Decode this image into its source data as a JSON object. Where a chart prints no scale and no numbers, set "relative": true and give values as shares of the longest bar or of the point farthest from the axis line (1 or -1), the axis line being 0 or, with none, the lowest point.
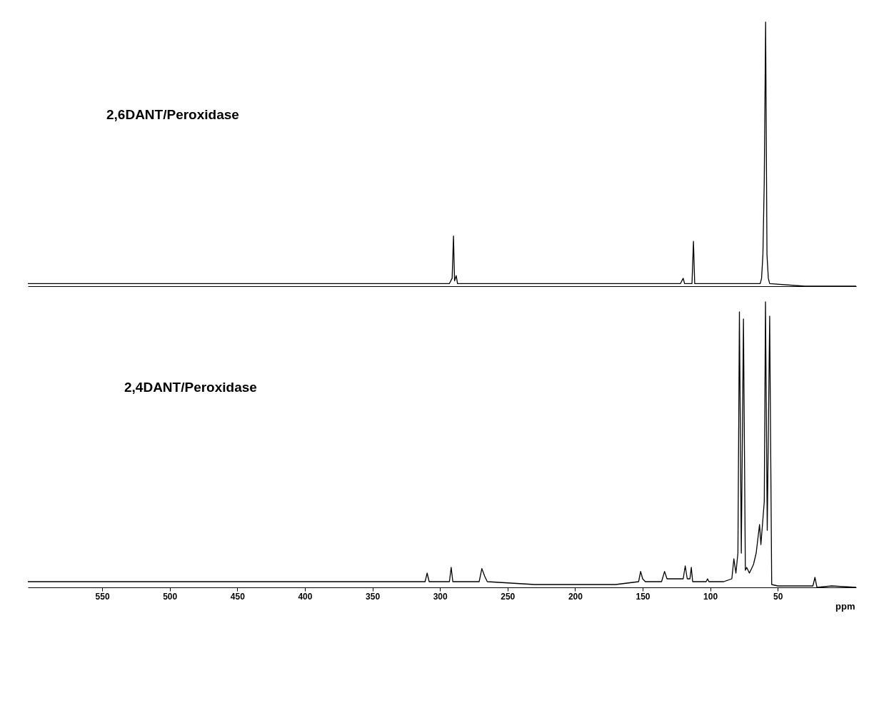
{
  "chart_data": [
    {
      "type": "line",
      "relative": true,
      "xlim": [
        605,
        -8
      ],
      "tick_labels": false,
      "grid": false,
      "marker": "none",
      "line_style": "solid",
      "annotations": [
        "2,6DANT/Peroxidase"
      ],
      "series": [
        {
          "color": "#000000",
          "x": [
            605,
            500,
            400,
            293,
            291,
            290,
            289.2,
            288,
            287,
            200,
            122,
            120,
            119,
            113.5,
            112.4,
            111.5,
            63,
            62,
            61,
            60,
            59,
            58,
            57,
            56,
            30,
            -8
          ],
          "values": [
            0.01,
            0.01,
            0.01,
            0.01,
            0.03,
            0.19,
            0.02,
            0.04,
            0.01,
            0.01,
            0.01,
            0.03,
            0.01,
            0.01,
            0.17,
            0.01,
            0.01,
            0.03,
            0.12,
            0.4,
            1.0,
            0.12,
            0.03,
            0.01,
            0.0,
            0.0
          ]
        }
      ]
    },
    {
      "type": "line",
      "relative": true,
      "xlim": [
        605,
        -8
      ],
      "xticks": [
        550,
        500,
        450,
        400,
        350,
        300,
        250,
        200,
        150,
        100,
        50
      ],
      "xlabel": "ppm",
      "grid": false,
      "marker": "none",
      "line_style": "solid",
      "annotations": [
        "2,4DANT/Peroxidase"
      ],
      "series": [
        {
          "color": "#000000",
          "x": [
            605,
            500,
            400,
            330,
            311,
            309.5,
            308,
            293,
            291.7,
            290.5,
            271,
            269,
            267,
            265,
            230,
            200,
            170,
            153,
            151.5,
            150,
            148,
            136,
            133.8,
            132,
            120,
            118.5,
            117,
            115,
            114,
            113,
            103,
            102,
            101,
            90,
            84,
            82.5,
            81,
            79.5,
            78.4,
            77,
            75.4,
            74,
            73,
            71,
            68,
            66,
            64.5,
            63.5,
            62.5,
            60,
            59.1,
            57.8,
            56,
            54.5,
            50,
            30,
            24,
            22.5,
            21,
            10,
            -8
          ],
          "values": [
            0.02,
            0.02,
            0.02,
            0.02,
            0.02,
            0.05,
            0.02,
            0.02,
            0.07,
            0.02,
            0.02,
            0.066,
            0.04,
            0.02,
            0.01,
            0.01,
            0.01,
            0.02,
            0.056,
            0.03,
            0.02,
            0.02,
            0.056,
            0.03,
            0.03,
            0.075,
            0.03,
            0.03,
            0.07,
            0.02,
            0.02,
            0.03,
            0.02,
            0.02,
            0.03,
            0.1,
            0.05,
            0.12,
            0.965,
            0.12,
            0.94,
            0.06,
            0.07,
            0.05,
            0.08,
            0.12,
            0.18,
            0.22,
            0.15,
            0.3,
            1.0,
            0.2,
            0.95,
            0.01,
            0.005,
            0.005,
            0.005,
            0.035,
            0.0,
            0.005,
            0.0
          ]
        }
      ]
    }
  ]
}
